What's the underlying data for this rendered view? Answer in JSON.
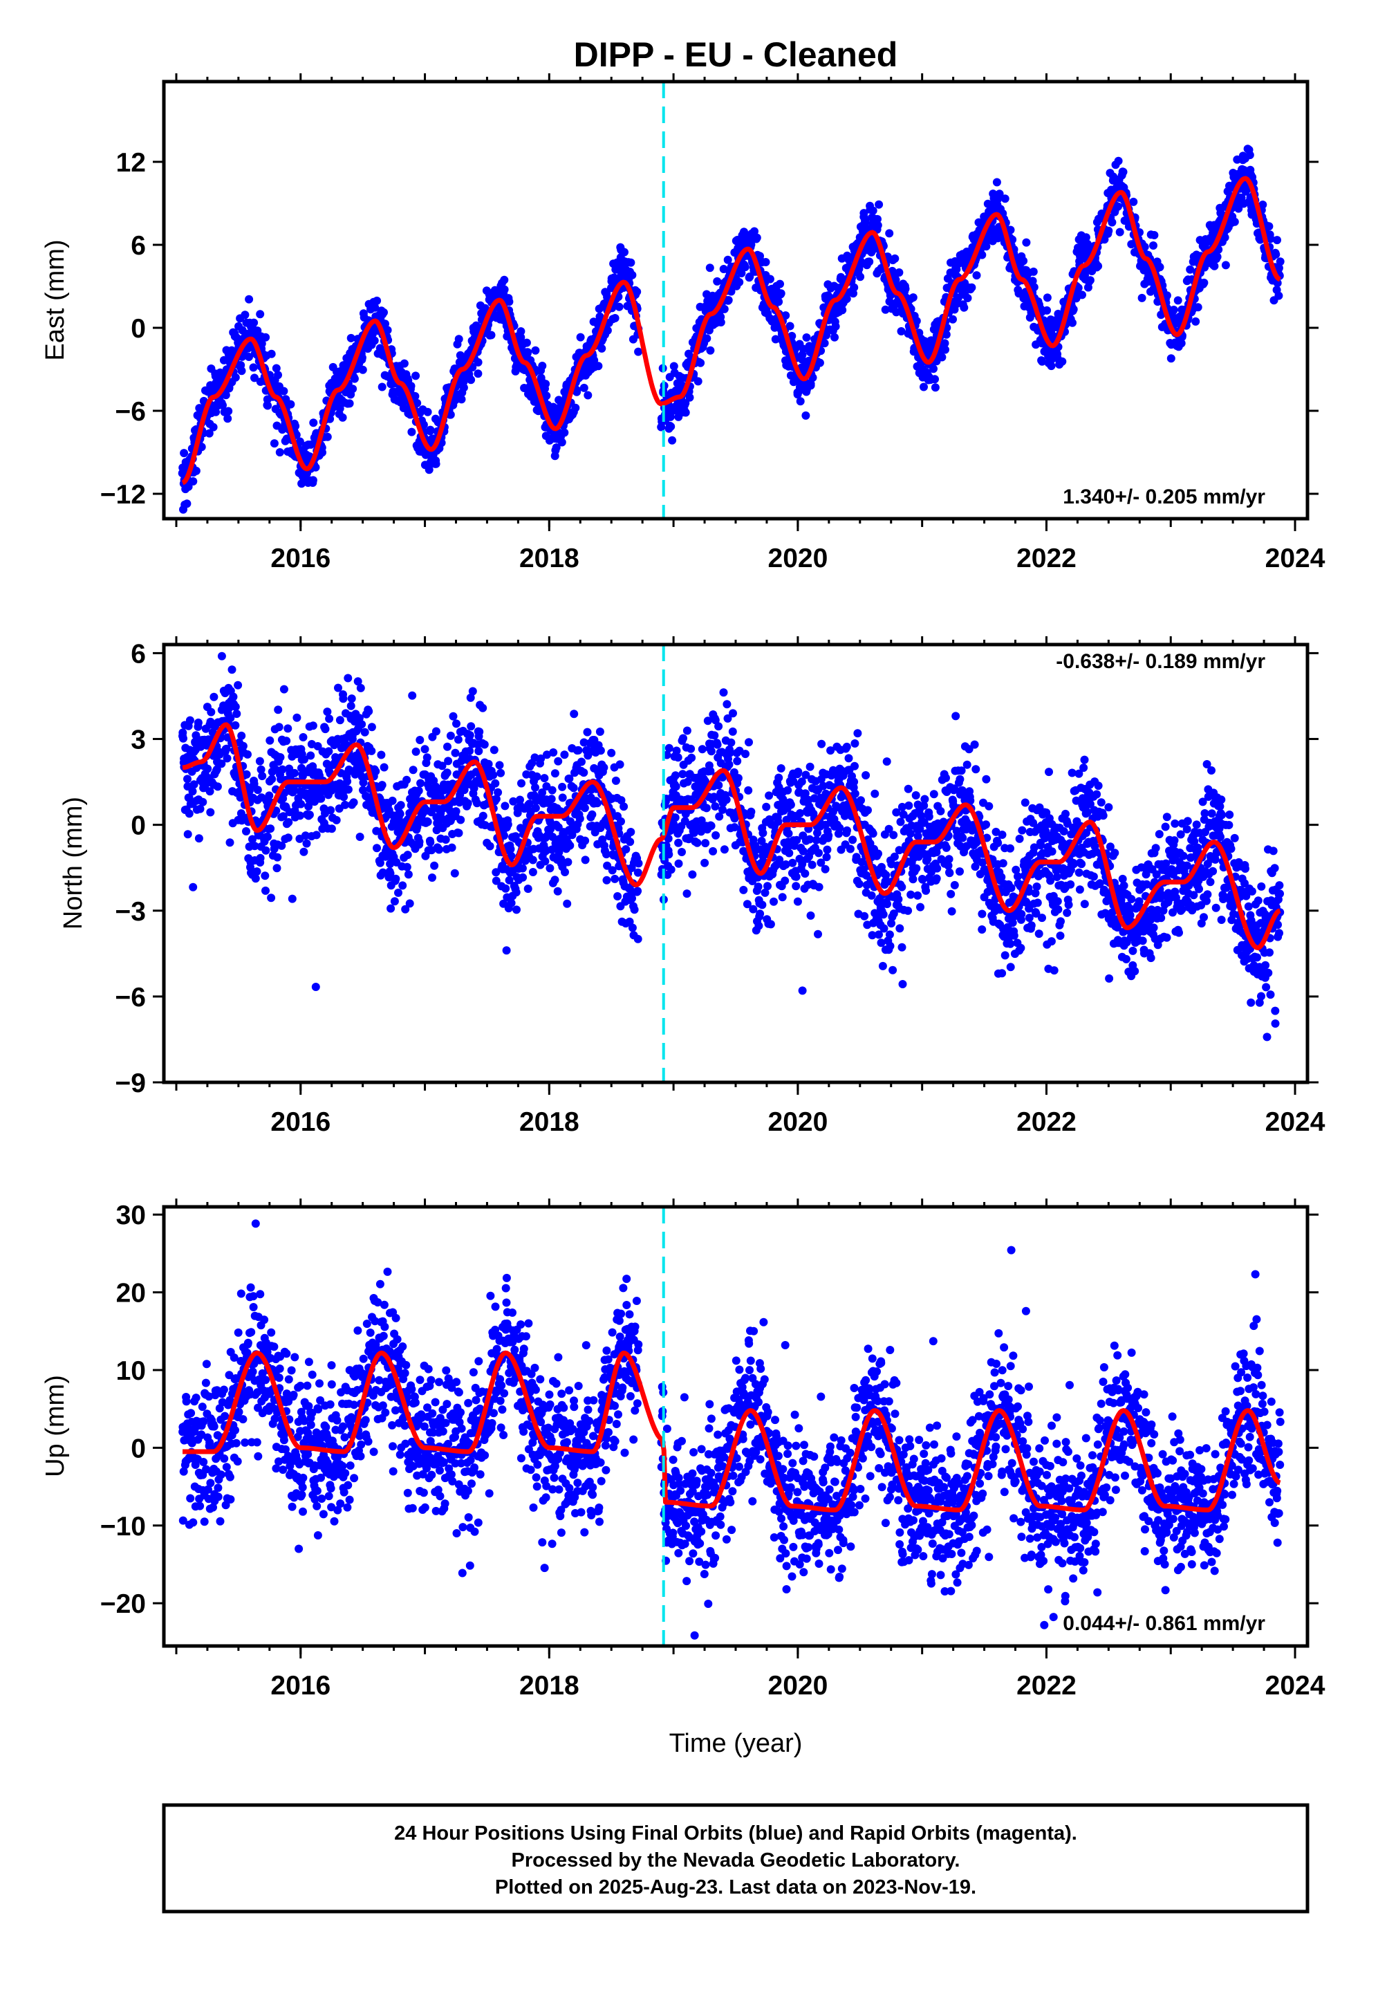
{
  "title": "DIPP  - EU - Cleaned",
  "xlabel": "Time (year)",
  "colors": {
    "points_final": "#0000ff",
    "points_rapid": "#ff00ff",
    "model": "#ff0000",
    "offset_line": "#00e5ee",
    "axes": "#000000"
  },
  "footer": {
    "line1": "24 Hour Positions Using Final Orbits (blue) and Rapid Orbits (magenta).",
    "line2": "Processed by the Nevada Geodetic Laboratory.",
    "line3": "Plotted on 2025-Aug-23. Last data on 2023-Nov-19."
  },
  "chart_data": [
    {
      "type": "scatter",
      "ylabel": "East (mm)",
      "rate_label": "1.340+/- 0.205 mm/yr",
      "xlim": [
        2014.9,
        2024.1
      ],
      "ylim": [
        -13.8,
        17.8
      ],
      "xticks": [
        2016,
        2018,
        2020,
        2022,
        2024
      ],
      "yticks": [
        -12,
        -6,
        0,
        6,
        12
      ],
      "offset_epoch": 2018.92,
      "data_span": [
        2015.05,
        2023.88
      ],
      "model_knots": {
        "x": [
          2015.05,
          2015.3,
          2015.6,
          2015.8,
          2016.05,
          2016.3,
          2016.6,
          2016.8,
          2017.05,
          2017.3,
          2017.6,
          2017.8,
          2018.05,
          2018.3,
          2018.6,
          2018.9,
          2019.05,
          2019.3,
          2019.6,
          2019.8,
          2020.05,
          2020.3,
          2020.6,
          2020.8,
          2021.05,
          2021.3,
          2021.6,
          2021.8,
          2022.05,
          2022.3,
          2022.6,
          2022.8,
          2023.05,
          2023.3,
          2023.6,
          2023.88
        ],
        "y": [
          -11.2,
          -5,
          -0.8,
          -5,
          -10.2,
          -4.5,
          0.5,
          -4,
          -8.8,
          -3,
          2,
          -2.5,
          -7.3,
          -2,
          3.3,
          -5.5,
          -5,
          1,
          5.7,
          1.5,
          -3.7,
          2,
          6.9,
          2.5,
          -2.5,
          3.5,
          8.2,
          3.5,
          -1.3,
          4.5,
          9.8,
          5,
          -0.5,
          5.5,
          10.8,
          3.5
        ]
      },
      "scatter_noise_mm": 1.0,
      "scatter_points_shown": 3000
    },
    {
      "type": "scatter",
      "ylabel": "North (mm)",
      "rate_label": "-0.638+/- 0.189 mm/yr",
      "xlim": [
        2014.9,
        2024.1
      ],
      "ylim": [
        -9,
        6.3
      ],
      "xticks": [
        2016,
        2018,
        2020,
        2022,
        2024
      ],
      "yticks": [
        -9,
        -6,
        -3,
        0,
        3,
        6
      ],
      "offset_epoch": 2018.92,
      "data_span": [
        2015.05,
        2023.88
      ],
      "model_knots": {
        "x": [
          2015.05,
          2015.2,
          2015.4,
          2015.65,
          2015.9,
          2016.2,
          2016.45,
          2016.75,
          2017.0,
          2017.15,
          2017.4,
          2017.7,
          2017.9,
          2018.1,
          2018.35,
          2018.7,
          2018.9,
          2019.0,
          2019.15,
          2019.4,
          2019.7,
          2019.9,
          2020.1,
          2020.35,
          2020.7,
          2020.95,
          2021.1,
          2021.35,
          2021.7,
          2021.95,
          2022.1,
          2022.35,
          2022.65,
          2022.95,
          2023.1,
          2023.35,
          2023.7,
          2023.88
        ],
        "y": [
          2.0,
          2.2,
          3.5,
          -0.2,
          1.5,
          1.5,
          2.8,
          -0.8,
          0.8,
          0.8,
          2.2,
          -1.4,
          0.3,
          0.3,
          1.5,
          -2.1,
          -0.5,
          0.6,
          0.6,
          1.9,
          -1.7,
          0.0,
          0.0,
          1.3,
          -2.4,
          -0.6,
          -0.6,
          0.7,
          -3.0,
          -1.3,
          -1.3,
          0.1,
          -3.6,
          -2.0,
          -2.0,
          -0.6,
          -4.3,
          -3.0
        ]
      },
      "scatter_noise_mm": 1.1,
      "scatter_points_shown": 3000
    },
    {
      "type": "scatter",
      "ylabel": "Up (mm)",
      "rate_label": "0.044+/- 0.861 mm/yr",
      "xlim": [
        2014.9,
        2024.1
      ],
      "ylim": [
        -25.5,
        31
      ],
      "xticks": [
        2016,
        2018,
        2020,
        2022,
        2024
      ],
      "yticks": [
        -20,
        -10,
        0,
        10,
        20,
        30
      ],
      "offset_epoch": 2018.92,
      "data_span": [
        2015.05,
        2023.88
      ],
      "model_knots": {
        "x": [
          2015.05,
          2015.3,
          2015.65,
          2016.0,
          2016.35,
          2016.65,
          2017.0,
          2017.35,
          2017.65,
          2018.0,
          2018.35,
          2018.6,
          2018.92,
          2018.93,
          2019.3,
          2019.62,
          2019.95,
          2020.3,
          2020.62,
          2020.95,
          2021.3,
          2021.62,
          2021.95,
          2022.3,
          2022.62,
          2022.95,
          2023.3,
          2023.62,
          2023.88
        ],
        "y": [
          -0.5,
          -0.5,
          12.2,
          0.0,
          -0.5,
          12.2,
          0.0,
          -0.5,
          12.2,
          0.0,
          -0.5,
          12.2,
          1.0,
          -7.0,
          -7.5,
          4.8,
          -7.5,
          -8.0,
          4.8,
          -7.5,
          -8.0,
          4.8,
          -7.5,
          -8.0,
          4.8,
          -7.5,
          -8.0,
          4.8,
          -4.5
        ]
      },
      "scatter_noise_mm": 4.5,
      "scatter_points_shown": 3000
    }
  ]
}
